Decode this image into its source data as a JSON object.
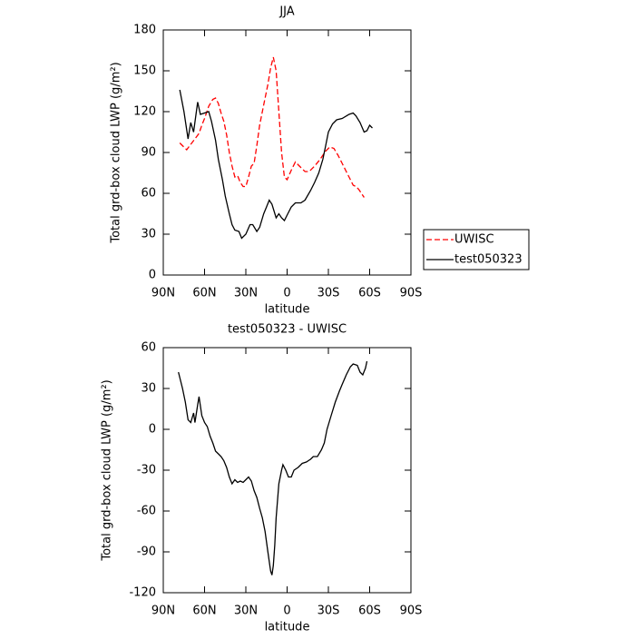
{
  "chart_data": [
    {
      "type": "line",
      "title": "JJA",
      "xlabel": "latitude",
      "ylabel": "Total grd-box cloud LWP (g/m²)",
      "xlim": [
        90,
        -90
      ],
      "xticks": [
        {
          "value": 90,
          "label": "90N"
        },
        {
          "value": 60,
          "label": "60N"
        },
        {
          "value": 30,
          "label": "30N"
        },
        0,
        {
          "value": -30,
          "label": "30S"
        },
        {
          "value": -60,
          "label": "60S"
        },
        {
          "value": -90,
          "label": "90S"
        }
      ],
      "ylim": [
        0,
        180
      ],
      "yticks": [
        0,
        30,
        60,
        90,
        120,
        150,
        180
      ],
      "legend": "right",
      "series": [
        {
          "name": "UWISC",
          "color": "#ff0000",
          "dash": true,
          "x": [
            78,
            76,
            73,
            70,
            67,
            64,
            62,
            60,
            57,
            54,
            52,
            50,
            48,
            46,
            44,
            42,
            40,
            38,
            36,
            34,
            32,
            30,
            28,
            26,
            24,
            22,
            20,
            17,
            14,
            12,
            10,
            8,
            6,
            4,
            2,
            0,
            -3,
            -6,
            -9,
            -13,
            -16,
            -20,
            -24,
            -28,
            -31,
            -34,
            -37,
            -40,
            -43,
            -46,
            -48,
            -50,
            -52,
            -54,
            -56
          ],
          "values": [
            97,
            95,
            92,
            96,
            100,
            104,
            110,
            115,
            124,
            129,
            130,
            126,
            119,
            113,
            103,
            90,
            80,
            72,
            73,
            68,
            65,
            65,
            72,
            80,
            82,
            95,
            110,
            125,
            140,
            152,
            160,
            150,
            120,
            90,
            72,
            70,
            77,
            83,
            80,
            76,
            76,
            80,
            85,
            91,
            94,
            93,
            88,
            82,
            76,
            70,
            66,
            65,
            63,
            60,
            57
          ]
        },
        {
          "name": "test050323",
          "color": "#000000",
          "dash": false,
          "x": [
            78,
            75,
            72,
            70,
            68,
            65,
            63,
            60,
            57,
            55,
            52,
            50,
            47,
            45,
            42,
            40,
            38,
            35,
            33,
            30,
            27,
            25,
            22,
            20,
            17,
            15,
            13,
            11,
            8,
            6,
            4,
            2,
            0,
            -3,
            -6,
            -10,
            -13,
            -17,
            -20,
            -23,
            -26,
            -28,
            -30,
            -33,
            -36,
            -40,
            -45,
            -48,
            -50,
            -53,
            -56,
            -58,
            -60,
            -62
          ],
          "values": [
            136,
            120,
            100,
            112,
            105,
            127,
            118,
            119,
            120,
            113,
            99,
            85,
            70,
            58,
            45,
            37,
            33,
            32,
            27,
            30,
            37,
            37,
            32,
            35,
            45,
            50,
            55,
            52,
            42,
            45,
            42,
            40,
            44,
            50,
            53,
            53,
            55,
            62,
            68,
            75,
            85,
            95,
            105,
            111,
            114,
            115,
            118,
            119,
            117,
            112,
            105,
            106,
            110,
            108
          ]
        }
      ]
    },
    {
      "type": "line",
      "title": "test050323 - UWISC",
      "xlabel": "latitude",
      "ylabel": "Total grd-box cloud LWP (g/m²)",
      "xlim": [
        90,
        -90
      ],
      "xticks": [
        {
          "value": 90,
          "label": "90N"
        },
        {
          "value": 60,
          "label": "60N"
        },
        {
          "value": 30,
          "label": "30N"
        },
        0,
        {
          "value": -30,
          "label": "30S"
        },
        {
          "value": -60,
          "label": "60S"
        },
        {
          "value": -90,
          "label": "90S"
        }
      ],
      "ylim": [
        -120,
        60
      ],
      "yticks": [
        -120,
        -90,
        -60,
        -30,
        0,
        30,
        60
      ],
      "series": [
        {
          "color": "#000000",
          "dash": false,
          "x": [
            79,
            76,
            74,
            72,
            70,
            68,
            67,
            65,
            64,
            62,
            60,
            58,
            56,
            54,
            52,
            50,
            48,
            46,
            44,
            42,
            40,
            38,
            36,
            34,
            32,
            30,
            28,
            26,
            24,
            22,
            20,
            18,
            16,
            14,
            12,
            11,
            10,
            9,
            8,
            6,
            4,
            3,
            1,
            -1,
            -3,
            -5,
            -8,
            -11,
            -14,
            -17,
            -19,
            -22,
            -25,
            -27,
            -29,
            -32,
            -35,
            -38,
            -40,
            -43,
            -46,
            -48,
            -51,
            -53,
            -55,
            -57,
            -58
          ],
          "values": [
            42,
            30,
            20,
            7,
            5,
            12,
            5,
            18,
            24,
            10,
            5,
            2,
            -5,
            -10,
            -16,
            -18,
            -20,
            -23,
            -28,
            -35,
            -40,
            -37,
            -39,
            -38,
            -39,
            -37,
            -35,
            -38,
            -45,
            -50,
            -58,
            -65,
            -75,
            -90,
            -104,
            -107,
            -100,
            -85,
            -65,
            -40,
            -30,
            -26,
            -30,
            -35,
            -35,
            -30,
            -28,
            -25,
            -24,
            -22,
            -20,
            -20,
            -15,
            -10,
            0,
            10,
            20,
            28,
            33,
            40,
            46,
            48,
            47,
            42,
            40,
            45,
            50
          ]
        }
      ]
    }
  ]
}
